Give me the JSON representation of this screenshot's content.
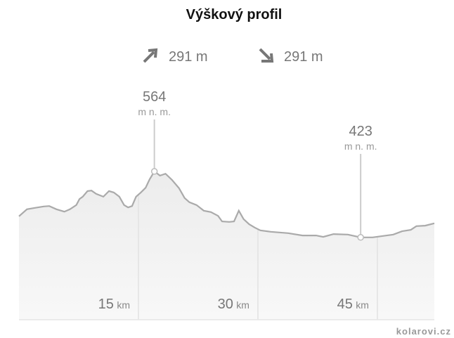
{
  "chart_data": {
    "type": "area",
    "title": "Výškový profil",
    "ascent": "291 m",
    "descent": "291 m",
    "x": [
      0,
      1.0,
      2.0,
      3.1,
      3.8,
      4.7,
      5.7,
      6.4,
      7.2,
      7.6,
      8.0,
      8.6,
      9.1,
      9.7,
      10.6,
      11.3,
      11.9,
      12.6,
      13.2,
      13.7,
      14.2,
      14.7,
      15.3,
      15.9,
      16.4,
      17.0,
      17.7,
      18.4,
      19.2,
      20.1,
      20.8,
      21.4,
      22.3,
      23.2,
      24.1,
      25.0,
      25.5,
      26.4,
      27.0,
      27.6,
      28.2,
      28.9,
      29.6,
      30.3,
      31.6,
      33.8,
      35.6,
      37.3,
      38.2,
      39.5,
      41.3,
      42.9,
      44.4,
      45.7,
      47.0,
      48.1,
      49.2,
      49.9,
      51.0,
      52.15
    ],
    "values": [
      468,
      483,
      486,
      489,
      490,
      483,
      478,
      483,
      492,
      505,
      510,
      522,
      523,
      516,
      510,
      522,
      519,
      510,
      492,
      487,
      490,
      510,
      519,
      529,
      547,
      564,
      555,
      559,
      546,
      528,
      507,
      498,
      492,
      480,
      477,
      469,
      457,
      456,
      457,
      480,
      462,
      451,
      444,
      438,
      435,
      432,
      427,
      427,
      424,
      430,
      429,
      423,
      423,
      426,
      429,
      436,
      439,
      447,
      448,
      453
    ],
    "color": "#aaaaaa",
    "xlim": [
      0,
      52.15
    ],
    "ylim": [
      247,
      720
    ],
    "xticks": [
      15,
      30,
      45
    ],
    "x_unit": "km",
    "annotations": [
      {
        "x": 17.0,
        "value": 564,
        "unit": "m n. m."
      },
      {
        "x": 42.9,
        "value": 423,
        "unit": "m n. m."
      }
    ],
    "watermark": "kolarovi.cz"
  }
}
